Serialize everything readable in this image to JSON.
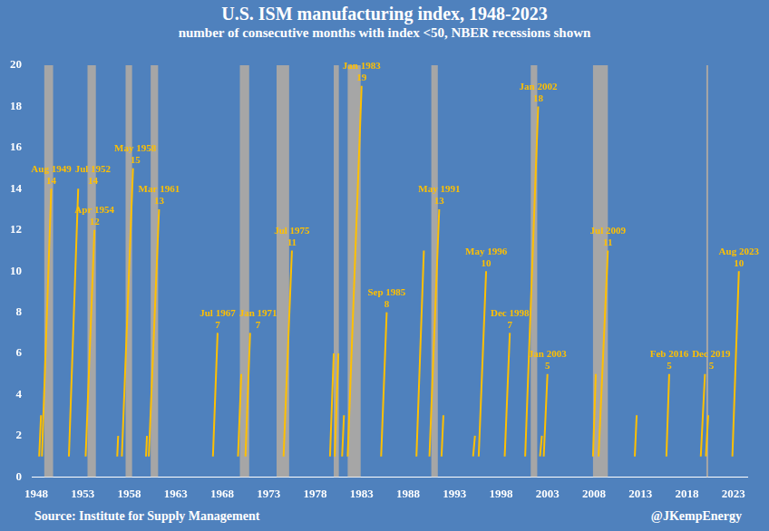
{
  "chart_data": {
    "type": "line",
    "title": "U.S. ISM manufacturing index, 1948-2023",
    "subtitle": "number of consecutive months with index <50, NBER recessions shown",
    "source": "Source: Institute for Supply Management",
    "credit": "@JKempEnergy",
    "color": "#ffc000",
    "x": [
      1948.3,
      1948.5,
      1948.55,
      1948.6,
      1949.6,
      1949.7,
      1951.5,
      1952.5,
      1952.6,
      1953.3,
      1954.25,
      1954.4,
      1956.7,
      1956.8,
      1956.9,
      1957.2,
      1958.4,
      1958.5,
      1959.8,
      1959.9,
      1960.0,
      1960.1,
      1961.2,
      1961.3,
      1967.0,
      1967.5,
      1967.6,
      1969.7,
      1970.05,
      1970.1,
      1970.5,
      1971.0,
      1971.1,
      1974.6,
      1975.5,
      1975.6,
      1979.6,
      1980.0,
      1980.05,
      1980.1,
      1980.5,
      1980.6,
      1980.9,
      1981.1,
      1981.2,
      1981.5,
      1983.0,
      1983.1,
      1985.1,
      1985.7,
      1985.8,
      1988.9,
      1989.7,
      1989.8,
      1990.3,
      1991.35,
      1991.45,
      1991.6,
      1991.8,
      1991.9,
      1995.0,
      1995.2,
      1995.3,
      1995.6,
      1996.4,
      1996.5,
      1998.4,
      1998.95,
      1999.0,
      2000.6,
      2002.0,
      2002.1,
      2002.2,
      2002.4,
      2002.45,
      2002.6,
      2003.0,
      2003.1,
      2007.9,
      2008.2,
      2008.25,
      2008.5,
      2009.5,
      2009.6,
      2012.4,
      2012.6,
      2012.7,
      2015.8,
      2016.1,
      2016.2,
      2019.5,
      2019.95,
      2020.0,
      2020.05,
      2020.3,
      2020.4,
      2022.9,
      2023.6
    ],
    "values": [
      1,
      3,
      null,
      1,
      14,
      null,
      1,
      14,
      null,
      1,
      12,
      null,
      1,
      2,
      null,
      1,
      15,
      null,
      1,
      2,
      null,
      1,
      13,
      null,
      1,
      7,
      null,
      1,
      5,
      null,
      1,
      7,
      null,
      1,
      11,
      null,
      1,
      6,
      null,
      1,
      6,
      null,
      1,
      3,
      null,
      1,
      19,
      null,
      1,
      8,
      null,
      1,
      11,
      null,
      1,
      13,
      null,
      1,
      3,
      null,
      1,
      2,
      null,
      1,
      10,
      null,
      1,
      7,
      null,
      1,
      18,
      null,
      1,
      2,
      null,
      1,
      5,
      null,
      1,
      5,
      null,
      1,
      11,
      null,
      1,
      3,
      null,
      1,
      5,
      null,
      1,
      5,
      null,
      1,
      3,
      null,
      1,
      10
    ],
    "xlim": [
      1947.5,
      2024.5
    ],
    "xticks": [
      1948,
      1953,
      1958,
      1963,
      1968,
      1973,
      1978,
      1983,
      1988,
      1993,
      1998,
      2003,
      2008,
      2013,
      2018,
      2023
    ],
    "ylim": [
      0,
      20
    ],
    "yticks": [
      0,
      2,
      4,
      6,
      8,
      10,
      12,
      14,
      16,
      18,
      20
    ],
    "grid": false,
    "recessions": {
      "color": "#a6a6a6",
      "periods": [
        [
          1948.85,
          1949.8
        ],
        [
          1953.5,
          1954.4
        ],
        [
          1957.6,
          1958.3
        ],
        [
          1960.3,
          1961.1
        ],
        [
          1969.9,
          1970.9
        ],
        [
          1973.85,
          1975.2
        ],
        [
          1980.0,
          1980.55
        ],
        [
          1981.5,
          1982.9
        ],
        [
          1990.5,
          1991.2
        ],
        [
          2001.2,
          2001.9
        ],
        [
          2007.9,
          2009.5
        ],
        [
          2020.1,
          2020.3
        ]
      ]
    },
    "annotations": [
      {
        "x": 1949.6,
        "label": "Aug 1949",
        "value": 14
      },
      {
        "x": 1952.5,
        "label": "Jul 1952",
        "value": 14
      },
      {
        "x": 1954.25,
        "label": "Apr 1954",
        "value": 12
      },
      {
        "x": 1958.4,
        "label": "May 1958",
        "value": 15
      },
      {
        "x": 1961.2,
        "label": "Mar 1961",
        "value": 13
      },
      {
        "x": 1967.5,
        "label": "Jul 1967",
        "value": 7
      },
      {
        "x": 1971.0,
        "label": "Jan 1971",
        "value": 7
      },
      {
        "x": 1975.5,
        "label": "Jul 1975",
        "value": 11
      },
      {
        "x": 1983.0,
        "label": "Jan 1983",
        "value": 19
      },
      {
        "x": 1985.7,
        "label": "Sep 1985",
        "value": 8
      },
      {
        "x": 1991.35,
        "label": "May 1991",
        "value": 13
      },
      {
        "x": 1996.4,
        "label": "May 1996",
        "value": 10
      },
      {
        "x": 1998.95,
        "label": "Dec 1998",
        "value": 7
      },
      {
        "x": 2002.0,
        "label": "Jan 2002",
        "value": 18
      },
      {
        "x": 2003.0,
        "label": "Jan 2003",
        "value": 5
      },
      {
        "x": 2009.5,
        "label": "Jul 2009",
        "value": 11
      },
      {
        "x": 2016.1,
        "label": "Feb 2016",
        "value": 5
      },
      {
        "x": 2019.95,
        "label": "Dec 2019",
        "value": 5
      },
      {
        "x": 2023.6,
        "label": "Aug 2023",
        "value": 10
      }
    ]
  }
}
